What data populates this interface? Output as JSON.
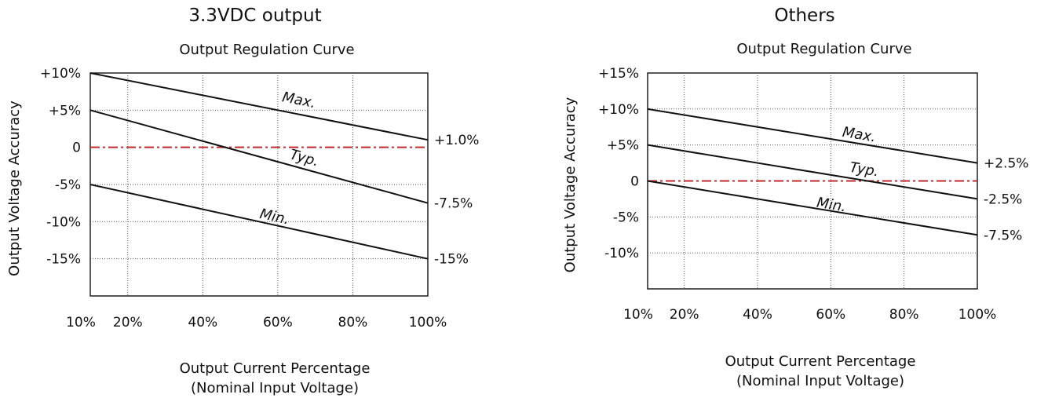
{
  "chart_data": [
    {
      "type": "line",
      "title": "3.3VDC output",
      "subtitle": "Output Regulation Curve",
      "ylabel": "Output Voltage Accuracy",
      "xlabel": "Output Current Percentage",
      "xlabel_note": "(Nominal Input Voltage)",
      "xlim": [
        10,
        100
      ],
      "ylim": [
        -20,
        10
      ],
      "x_ticks": [
        10,
        20,
        40,
        60,
        80,
        100
      ],
      "x_tick_labels": [
        "10%",
        "20%",
        "40%",
        "60%",
        "80%",
        "100%"
      ],
      "y_ticks": [
        10,
        5,
        0,
        -5,
        -10,
        -15
      ],
      "y_tick_labels": [
        "+10%",
        "+5%",
        "0",
        "-5%",
        "-10%",
        "-15%"
      ],
      "grid": true,
      "reference_line": {
        "y": 0,
        "color": "#c0282d",
        "style": "dash-dot"
      },
      "series": [
        {
          "name": "Max.",
          "x": [
            10,
            100
          ],
          "y": [
            10,
            1.0
          ],
          "end_label": "+1.0%",
          "label_at": [
            61,
            6.2
          ]
        },
        {
          "name": "Typ.",
          "x": [
            10,
            100
          ],
          "y": [
            5,
            -7.5
          ],
          "end_label": "-7.5%",
          "label_at": [
            63,
            -1.5
          ]
        },
        {
          "name": "Min.",
          "x": [
            10,
            100
          ],
          "y": [
            -5,
            -15
          ],
          "end_label": "-15%",
          "label_at": [
            55,
            -9.5
          ]
        }
      ]
    },
    {
      "type": "line",
      "title": "Others",
      "subtitle": "Output Regulation Curve",
      "ylabel": "Output Voltage Accuracy",
      "xlabel": "Output Current Percentage",
      "xlabel_note": "(Nominal Input Voltage)",
      "xlim": [
        10,
        100
      ],
      "ylim": [
        -15,
        15
      ],
      "x_ticks": [
        10,
        20,
        40,
        60,
        80,
        100
      ],
      "x_tick_labels": [
        "10%",
        "20%",
        "40%",
        "60%",
        "80%",
        "100%"
      ],
      "y_ticks": [
        15,
        10,
        5,
        0,
        -5,
        -10
      ],
      "y_tick_labels": [
        "+15%",
        "+10%",
        "+5%",
        "0",
        "-5%",
        "-10%"
      ],
      "grid": true,
      "reference_line": {
        "y": 0,
        "color": "#c0282d",
        "style": "dash-dot"
      },
      "series": [
        {
          "name": "Max.",
          "x": [
            10,
            100
          ],
          "y": [
            10,
            2.5
          ],
          "end_label": "+2.5%",
          "label_at": [
            63,
            6.2
          ]
        },
        {
          "name": "Typ.",
          "x": [
            10,
            100
          ],
          "y": [
            5,
            -2.5
          ],
          "end_label": "-2.5%",
          "label_at": [
            65,
            1.3
          ]
        },
        {
          "name": "Min.",
          "x": [
            10,
            100
          ],
          "y": [
            0,
            -7.5
          ],
          "end_label": "-7.5%",
          "label_at": [
            56,
            -3.6
          ]
        }
      ]
    }
  ]
}
